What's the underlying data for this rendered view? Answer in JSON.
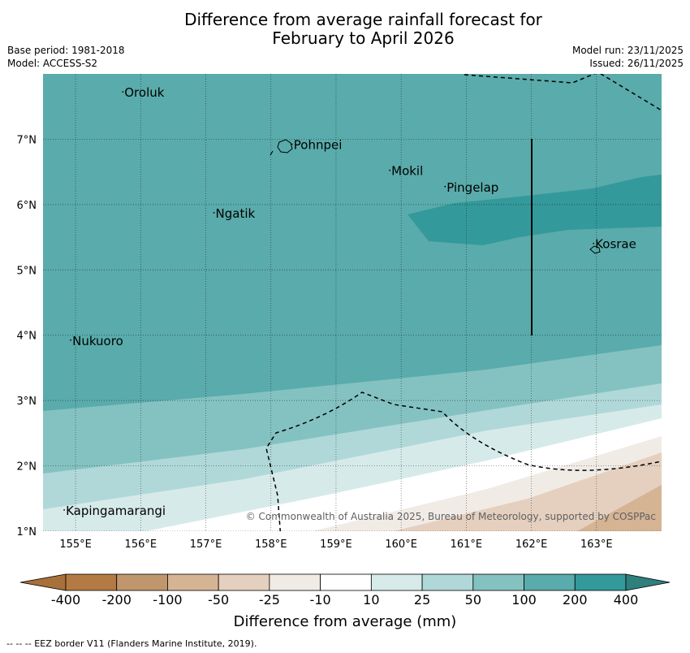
{
  "title": {
    "line1": "Difference from average rainfall forecast for",
    "line2": "February to April 2026"
  },
  "meta": {
    "base_period": "Base period: 1981-2018",
    "model": "Model: ACCESS-S2",
    "model_run": "Model run: 23/11/2025",
    "issued": "Issued: 26/11/2025"
  },
  "map": {
    "lon_range": [
      154.5,
      164.0
    ],
    "lat_range": [
      1.0,
      8.0
    ],
    "lon_ticks": [
      "155°E",
      "156°E",
      "157°E",
      "158°E",
      "159°E",
      "160°E",
      "161°E",
      "162°E",
      "163°E"
    ],
    "lat_ticks": [
      "1°N",
      "2°N",
      "3°N",
      "4°N",
      "5°N",
      "6°N",
      "7°N"
    ],
    "places": [
      {
        "name": "Oroluk",
        "lon": 155.75,
        "lat": 7.65
      },
      {
        "name": "Pohnpei",
        "lon": 158.35,
        "lat": 6.85
      },
      {
        "name": "Mokil",
        "lon": 159.85,
        "lat": 6.45
      },
      {
        "name": "Pingelap",
        "lon": 160.7,
        "lat": 6.2
      },
      {
        "name": "Ngatik",
        "lon": 157.15,
        "lat": 5.8
      },
      {
        "name": "Kosrae",
        "lon": 162.98,
        "lat": 5.33
      },
      {
        "name": "Nukuoro",
        "lon": 154.95,
        "lat": 3.85
      },
      {
        "name": "Kapingamarangi",
        "lon": 154.85,
        "lat": 1.25
      }
    ],
    "copyright": "© Commonwealth of Australia 2025, Bureau of Meteorology, supported by COSPPac"
  },
  "colorbar": {
    "labels": [
      "-400",
      "-200",
      "-100",
      "-50",
      "-25",
      "-10",
      "10",
      "25",
      "50",
      "100",
      "200",
      "400"
    ],
    "colors": [
      "#a8703a",
      "#b47a43",
      "#c0976d",
      "#d5b494",
      "#e5d0bf",
      "#f1ebe6",
      "#ffffff",
      "#d7eaea",
      "#b0d8d8",
      "#84c2c1",
      "#5aabab",
      "#34999a",
      "#2f7f7d"
    ],
    "title": "Difference from average (mm)"
  },
  "footnote": "--  --  -- EEZ border V11 (Flanders Marine Institute, 2019)."
}
